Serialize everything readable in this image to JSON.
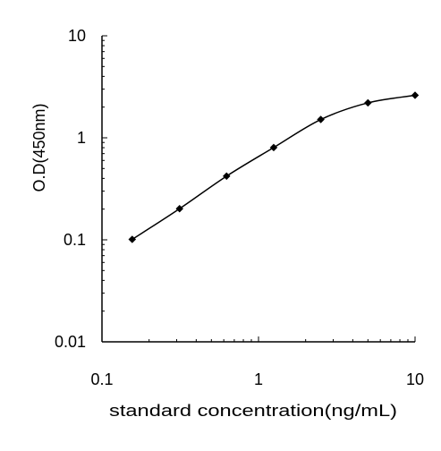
{
  "chart_data": {
    "type": "line",
    "title": "",
    "xlabel": "standard concentration(ng/mL)",
    "ylabel": "O.D(450nm)",
    "xscale": "log",
    "yscale": "log",
    "xlim": [
      0.1,
      10
    ],
    "ylim": [
      0.01,
      10
    ],
    "xticks": [
      {
        "value": 0.1,
        "label": "0.1"
      },
      {
        "value": 1,
        "label": "1"
      },
      {
        "value": 10,
        "label": "10"
      }
    ],
    "yticks": [
      {
        "value": 0.01,
        "label": "0.01"
      },
      {
        "value": 0.1,
        "label": "0.1"
      },
      {
        "value": 1,
        "label": "1"
      },
      {
        "value": 10,
        "label": "10"
      }
    ],
    "grid": false,
    "marker": "diamond",
    "color": "#000000",
    "series": [
      {
        "x": [
          0.156,
          0.313,
          0.625,
          1.25,
          2.5,
          5,
          10
        ],
        "y": [
          0.101,
          0.202,
          0.421,
          0.803,
          1.512,
          2.201,
          2.612
        ]
      }
    ]
  }
}
